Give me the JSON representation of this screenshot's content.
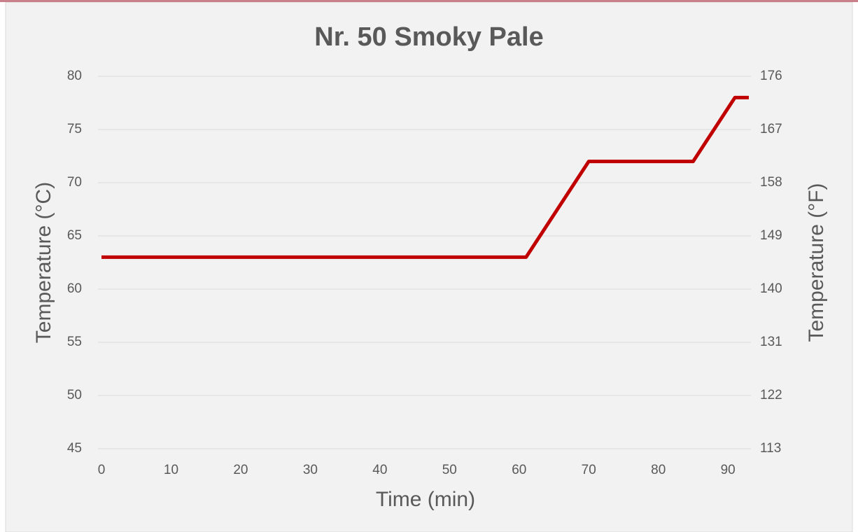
{
  "chart_data": {
    "type": "line",
    "title": "Nr. 50 Smoky Pale",
    "xlabel": "Time (min)",
    "ylabel": "Temperature (°C)",
    "y2label": "Temperature (°F)",
    "x": [
      0,
      61,
      70,
      85,
      91,
      93
    ],
    "values": [
      63,
      63,
      72,
      72,
      78,
      78
    ],
    "color": "#c00000",
    "xlim": [
      0,
      93
    ],
    "xticks": [
      0,
      10,
      20,
      30,
      40,
      50,
      60,
      70,
      80,
      90
    ],
    "ylim": [
      45,
      80
    ],
    "yticks": [
      45,
      50,
      55,
      60,
      65,
      70,
      75,
      80
    ],
    "y2lim": [
      113,
      176
    ],
    "y2ticks": [
      113,
      122,
      131,
      140,
      149,
      158,
      167,
      176
    ],
    "grid": true
  }
}
